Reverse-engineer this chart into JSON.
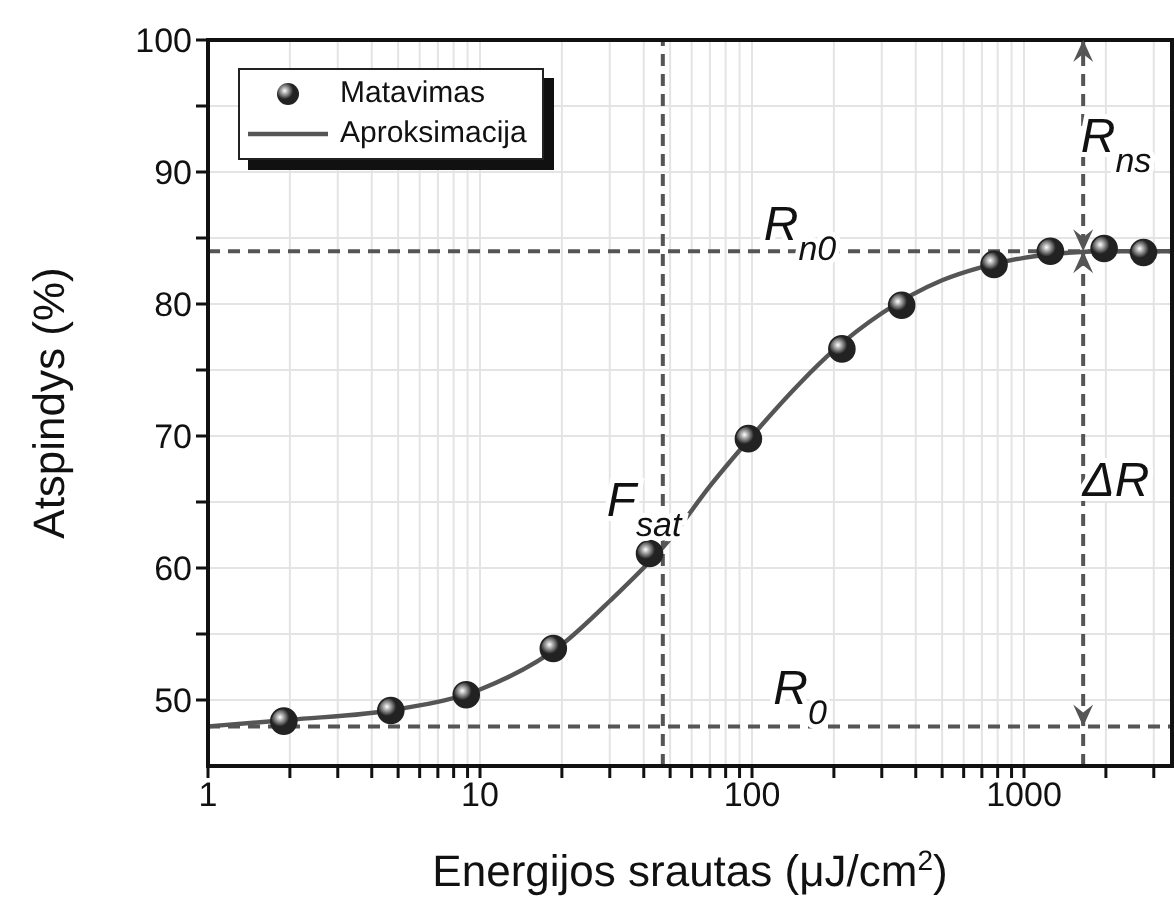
{
  "chart_data": {
    "type": "scatter",
    "xlabel": "Energijos srautas (μJ/cm$^{2}$)",
    "ylabel": "Atspindys (%)",
    "log": "x",
    "xlim": [
      1,
      3500
    ],
    "ylim": [
      45,
      100
    ],
    "xticks": [
      1,
      {
        "value": 2,
        "label": null
      },
      {
        "value": 3,
        "label": null
      },
      {
        "value": 4,
        "label": null
      },
      {
        "value": 5,
        "label": null
      },
      {
        "value": 6,
        "label": null
      },
      {
        "value": 7,
        "label": null
      },
      {
        "value": 8,
        "label": null
      },
      {
        "value": 9,
        "label": null
      },
      10,
      {
        "value": 20,
        "label": null
      },
      {
        "value": 30,
        "label": null
      },
      {
        "value": 40,
        "label": null
      },
      {
        "value": 50,
        "label": null
      },
      {
        "value": 60,
        "label": null
      },
      {
        "value": 70,
        "label": null
      },
      {
        "value": 80,
        "label": null
      },
      {
        "value": 90,
        "label": null
      },
      100,
      {
        "value": 200,
        "label": null
      },
      {
        "value": 300,
        "label": null
      },
      {
        "value": 400,
        "label": null
      },
      {
        "value": 500,
        "label": null
      },
      {
        "value": 600,
        "label": null
      },
      {
        "value": 700,
        "label": null
      },
      {
        "value": 800,
        "label": null
      },
      {
        "value": 900,
        "label": null
      },
      1000,
      {
        "value": 2000,
        "label": null
      },
      {
        "value": 3000,
        "label": null
      }
    ],
    "yticks": [
      50,
      {
        "value": 55,
        "label": null
      },
      60,
      {
        "value": 65,
        "label": null
      },
      70,
      {
        "value": 75,
        "label": null
      },
      80,
      {
        "value": 85,
        "label": null
      },
      90,
      {
        "value": 95,
        "label": null
      },
      100
    ],
    "grid": true,
    "legend": "top left",
    "series": [
      {
        "name": "Matavimas",
        "marker": "circle",
        "color": "#222222",
        "x": [
          1.9,
          4.7,
          8.9,
          18.6,
          42,
          97,
          214,
          355,
          776,
          1250,
          1970,
          2750
        ],
        "values": [
          48.4,
          49.2,
          50.4,
          53.9,
          61.1,
          69.8,
          76.6,
          79.9,
          83.0,
          84.0,
          84.2,
          83.9
        ]
      },
      {
        "name": "Aproksimacija",
        "type": "line",
        "marker": "none",
        "line_style": "solid",
        "color": "#555555",
        "x": [
          1,
          2,
          5,
          10,
          20,
          30,
          50,
          70,
          100,
          150,
          200,
          300,
          500,
          700,
          1000,
          1500,
          2000,
          3500
        ],
        "values": [
          48.0,
          48.5,
          49.3,
          50.8,
          54.2,
          57.5,
          62.2,
          66.2,
          70.0,
          74.0,
          76.5,
          79.3,
          81.8,
          82.8,
          83.5,
          83.9,
          84.0,
          84.0
        ]
      }
    ],
    "ref_lines": [
      {
        "axis": "y",
        "value": 84,
        "line_style": "dashed",
        "color": "#555555"
      },
      {
        "axis": "y",
        "value": 48,
        "line_style": "dashed",
        "color": "#555555"
      },
      {
        "axis": "x",
        "value": 47,
        "line_style": "dashed",
        "color": "#555555"
      },
      {
        "axis": "x",
        "value": 1650,
        "line_style": "dashed",
        "color": "#555555"
      }
    ],
    "annotations": [
      "R$_{n0}$",
      "R$_{0}$",
      "F$_{sat}$",
      "R$_{ns}$",
      "ΔR"
    ]
  }
}
